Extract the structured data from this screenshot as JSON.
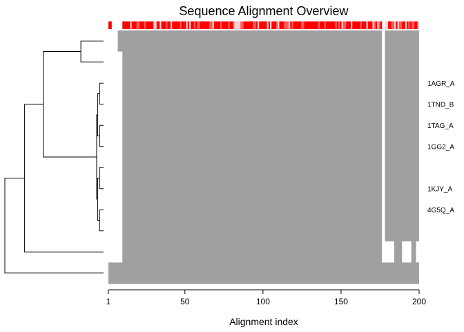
{
  "chart_data": {
    "type": "heatmap",
    "title": "Sequence Alignment Overview",
    "xlabel": "Alignment index",
    "ylabel": "",
    "xlim": [
      1,
      200
    ],
    "x_ticks": [
      1,
      50,
      100,
      150,
      200
    ],
    "colors": {
      "aligned": "#a0a0a0",
      "gap": "#ffffff",
      "conservation_high": "#ff0000",
      "conservation_low": "#ffd0d0"
    },
    "conservation_bar": true,
    "rows": [
      {
        "label": "",
        "gaps": [
          [
            1,
            6
          ],
          [
            177,
            178
          ]
        ]
      },
      {
        "label": "",
        "gaps": [
          [
            1,
            9
          ],
          [
            177,
            178
          ]
        ]
      },
      {
        "label": "1AGR_A",
        "gaps": [
          [
            1,
            9
          ],
          [
            177,
            178
          ]
        ]
      },
      {
        "label": "1TND_B",
        "gaps": [
          [
            1,
            9
          ],
          [
            177,
            178
          ]
        ]
      },
      {
        "label": "1TAG_A",
        "gaps": [
          [
            1,
            9
          ],
          [
            177,
            178
          ]
        ]
      },
      {
        "label": "1GG2_A",
        "gaps": [
          [
            1,
            9
          ],
          [
            177,
            178
          ]
        ]
      },
      {
        "label": "",
        "gaps": [
          [
            1,
            9
          ],
          [
            177,
            178
          ]
        ]
      },
      {
        "label": "1KJY_A",
        "gaps": [
          [
            1,
            9
          ],
          [
            177,
            178
          ]
        ]
      },
      {
        "label": "4G5Q_A",
        "gaps": [
          [
            1,
            9
          ],
          [
            177,
            178
          ]
        ]
      },
      {
        "label": "",
        "gaps": [
          [
            1,
            9
          ],
          [
            177,
            178
          ]
        ]
      },
      {
        "label": "",
        "gaps": [
          [
            1,
            9
          ],
          [
            177,
            184
          ],
          [
            190,
            195
          ],
          [
            199,
            200
          ]
        ]
      },
      {
        "label": "",
        "gaps": []
      }
    ],
    "dendrogram": {
      "n_leaves": 12,
      "merges": [
        {
          "a": 2,
          "b": 3,
          "height": 0.04
        },
        {
          "a": 4,
          "b": 5,
          "height": 0.04
        },
        {
          "a": 6,
          "b": 7,
          "height": 0.04
        },
        {
          "a": 8,
          "b": 9,
          "height": 0.04
        },
        {
          "a": -3,
          "b": -4,
          "height": 0.06
        },
        {
          "a": -1,
          "b": -2,
          "height": 0.06
        },
        {
          "a": -6,
          "b": -5,
          "height": 0.07
        },
        {
          "a": 0,
          "b": 1,
          "height": 0.23
        },
        {
          "a": -8,
          "b": -7,
          "height": 0.61
        },
        {
          "a": -9,
          "b": 10,
          "height": 0.8
        },
        {
          "a": -10,
          "b": 11,
          "height": 1.0
        }
      ]
    }
  }
}
